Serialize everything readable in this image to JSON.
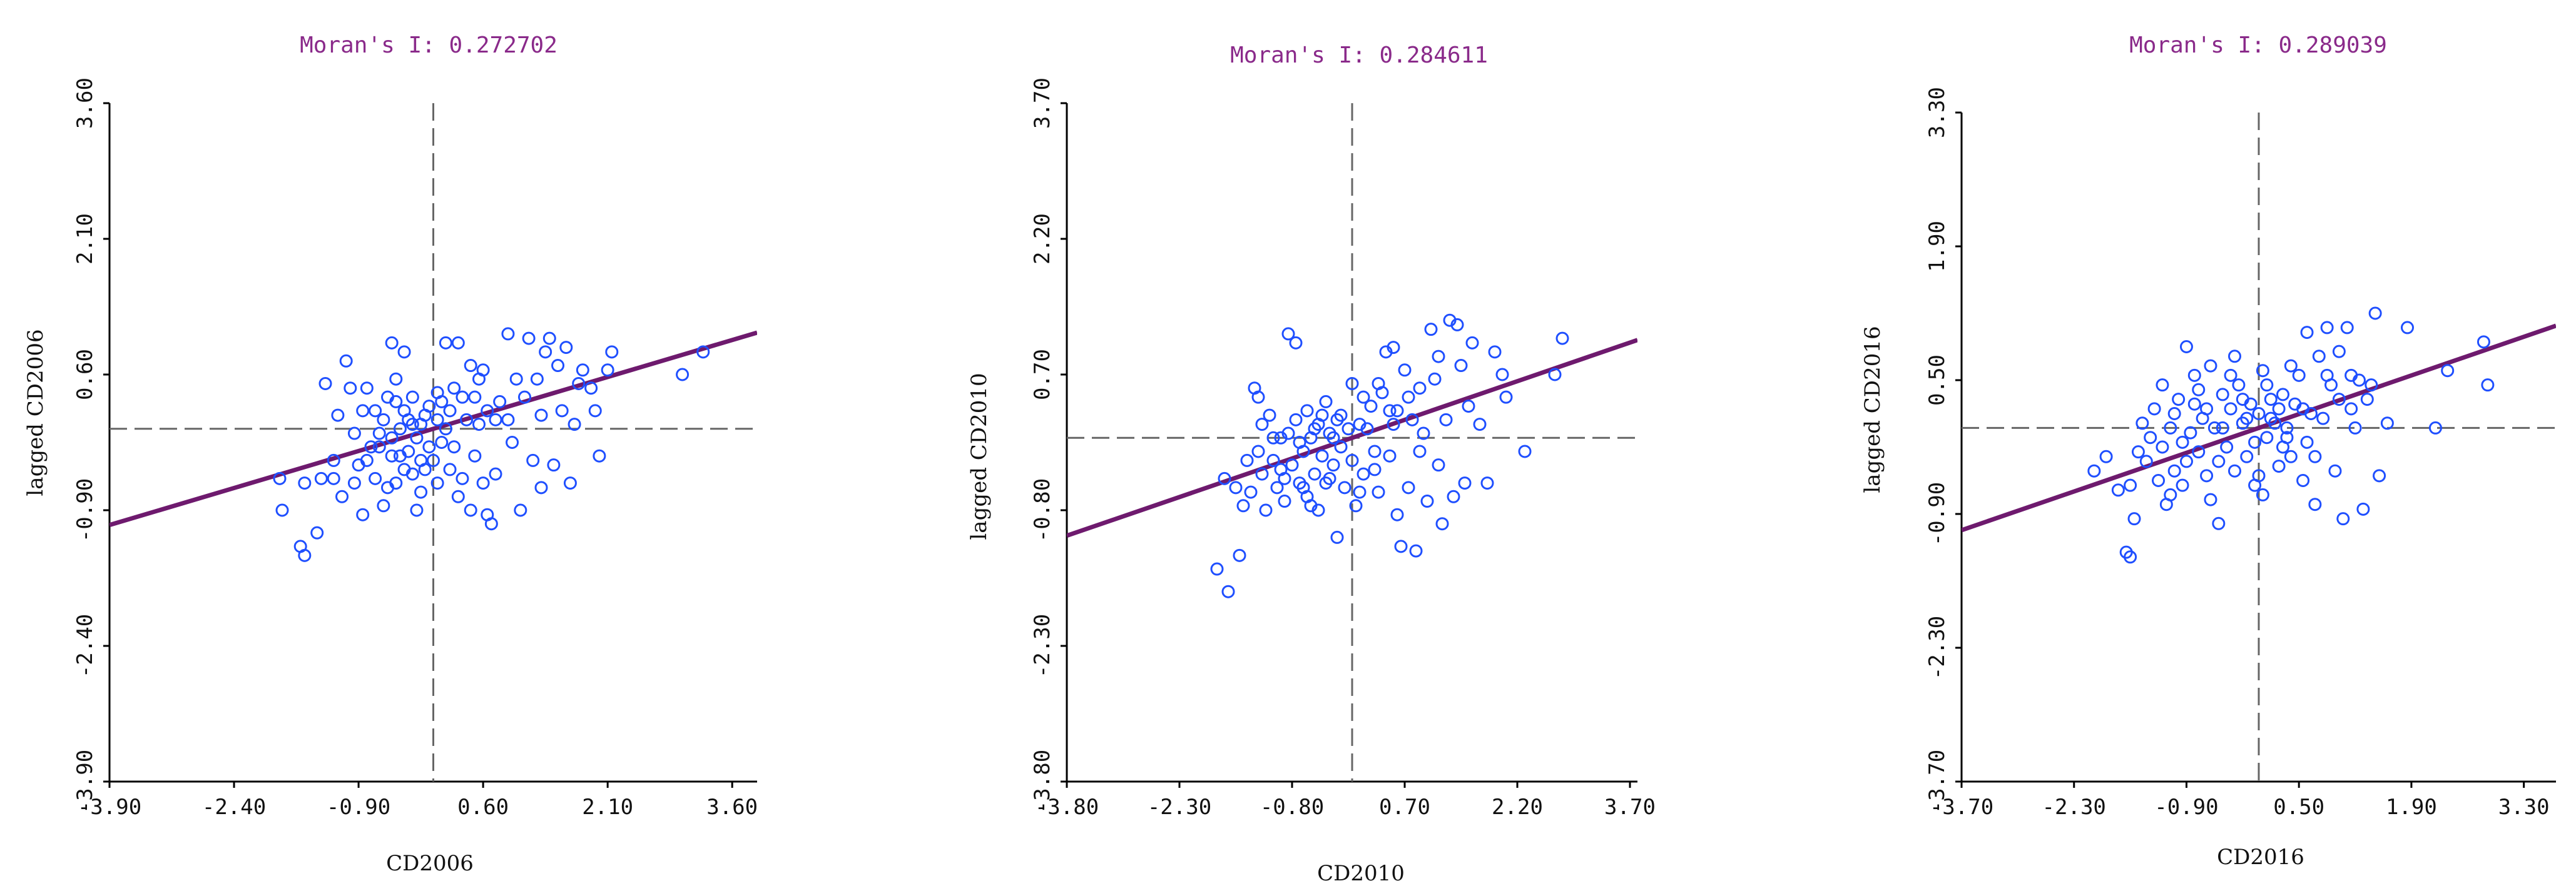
{
  "colors": {
    "points": "#1f4fff",
    "regression": "#6e1a6e",
    "title": "#8a2a8a",
    "quadrant": "#666666"
  },
  "chart_data": [
    {
      "type": "scatter",
      "title": "Moran's I: 0.272702",
      "xlabel": "CD2006",
      "ylabel": "lagged CD2006",
      "xlim": [
        -3.9,
        3.9
      ],
      "ylim": [
        -3.9,
        3.6
      ],
      "xticks": [
        -3.9,
        -2.4,
        -0.9,
        0.6,
        2.1,
        3.6
      ],
      "yticks": [
        -3.9,
        -2.4,
        -0.9,
        0.6,
        2.1,
        3.6
      ],
      "xtick_labels": [
        "-3.90",
        "-2.40",
        "-0.90",
        "0.60",
        "2.10",
        "3.60"
      ],
      "ytick_labels": [
        "-3.90",
        "-2.40",
        "-0.90",
        "0.60",
        "2.10",
        "3.60"
      ],
      "slope": 0.272702,
      "quadrant_x": 0,
      "quadrant_y": 0,
      "points": [
        [
          -1.85,
          -0.55
        ],
        [
          -1.82,
          -0.9
        ],
        [
          -1.6,
          -1.3
        ],
        [
          -1.55,
          -1.4
        ],
        [
          -1.4,
          -1.15
        ],
        [
          -1.55,
          -0.6
        ],
        [
          -1.35,
          -0.55
        ],
        [
          -1.3,
          0.5
        ],
        [
          -1.2,
          -0.55
        ],
        [
          -1.1,
          -0.75
        ],
        [
          -1.05,
          0.75
        ],
        [
          -1.0,
          0.45
        ],
        [
          -0.95,
          -0.6
        ],
        [
          -0.9,
          -0.4
        ],
        [
          -0.85,
          0.2
        ],
        [
          -0.85,
          -0.95
        ],
        [
          -0.8,
          -0.35
        ],
        [
          -0.75,
          -0.2
        ],
        [
          -0.7,
          0.2
        ],
        [
          -0.7,
          -0.55
        ],
        [
          -0.65,
          -0.2
        ],
        [
          -0.6,
          0.1
        ],
        [
          -0.6,
          -0.85
        ],
        [
          -0.55,
          0.35
        ],
        [
          -0.5,
          0.95
        ],
        [
          -0.5,
          -0.1
        ],
        [
          -0.5,
          -0.3
        ],
        [
          -0.45,
          0.3
        ],
        [
          -0.45,
          -0.6
        ],
        [
          -0.4,
          0.0
        ],
        [
          -0.4,
          -0.3
        ],
        [
          -0.35,
          0.2
        ],
        [
          -0.35,
          -0.45
        ],
        [
          -0.3,
          0.1
        ],
        [
          -0.3,
          -0.25
        ],
        [
          -0.25,
          0.35
        ],
        [
          -0.25,
          -0.5
        ],
        [
          -0.2,
          -0.1
        ],
        [
          -0.2,
          -0.9
        ],
        [
          -0.15,
          0.05
        ],
        [
          -0.15,
          -0.35
        ],
        [
          -0.1,
          0.15
        ],
        [
          -0.1,
          -0.45
        ],
        [
          -0.05,
          -0.2
        ],
        [
          -0.05,
          0.25
        ],
        [
          0.0,
          -0.35
        ],
        [
          0.05,
          0.1
        ],
        [
          0.05,
          -0.6
        ],
        [
          0.1,
          0.3
        ],
        [
          0.1,
          -0.15
        ],
        [
          0.15,
          0.0
        ],
        [
          0.2,
          0.2
        ],
        [
          0.2,
          -0.45
        ],
        [
          0.25,
          -0.2
        ],
        [
          0.3,
          0.95
        ],
        [
          0.3,
          -0.75
        ],
        [
          0.35,
          0.35
        ],
        [
          0.4,
          0.1
        ],
        [
          0.45,
          0.7
        ],
        [
          0.5,
          0.35
        ],
        [
          0.5,
          -0.3
        ],
        [
          0.55,
          0.05
        ],
        [
          0.6,
          0.65
        ],
        [
          0.6,
          -0.6
        ],
        [
          0.65,
          0.2
        ],
        [
          0.7,
          -1.05
        ],
        [
          0.75,
          -0.5
        ],
        [
          0.8,
          0.3
        ],
        [
          0.9,
          1.05
        ],
        [
          0.9,
          0.1
        ],
        [
          0.95,
          -0.15
        ],
        [
          1.0,
          0.55
        ],
        [
          1.05,
          -0.9
        ],
        [
          1.1,
          0.35
        ],
        [
          1.15,
          1.0
        ],
        [
          1.2,
          -0.35
        ],
        [
          1.3,
          0.15
        ],
        [
          1.35,
          0.85
        ],
        [
          1.4,
          1.0
        ],
        [
          1.45,
          -0.4
        ],
        [
          1.5,
          0.7
        ],
        [
          1.55,
          0.2
        ],
        [
          1.6,
          0.9
        ],
        [
          1.7,
          0.05
        ],
        [
          1.75,
          0.5
        ],
        [
          1.9,
          0.45
        ],
        [
          1.95,
          0.2
        ],
        [
          2.0,
          -0.3
        ],
        [
          2.1,
          0.65
        ],
        [
          -0.35,
          0.85
        ],
        [
          0.15,
          0.95
        ],
        [
          0.55,
          0.55
        ],
        [
          -0.95,
          -0.05
        ],
        [
          1.25,
          0.55
        ],
        [
          0.35,
          -0.55
        ],
        [
          -0.25,
          0.05
        ],
        [
          3.0,
          0.6
        ],
        [
          3.25,
          0.85
        ],
        [
          2.15,
          0.85
        ],
        [
          1.8,
          0.65
        ],
        [
          0.05,
          0.4
        ],
        [
          -0.65,
          -0.05
        ],
        [
          -0.15,
          -0.7
        ],
        [
          0.75,
          0.1
        ],
        [
          1.3,
          -0.65
        ],
        [
          0.45,
          -0.9
        ],
        [
          -1.2,
          -0.35
        ],
        [
          -0.55,
          -0.65
        ],
        [
          0.25,
          0.45
        ],
        [
          0.65,
          -0.95
        ],
        [
          1.65,
          -0.6
        ],
        [
          -0.8,
          0.45
        ],
        [
          -0.45,
          0.55
        ],
        [
          -1.15,
          0.15
        ]
      ]
    },
    {
      "type": "scatter",
      "title": "Moran's I: 0.284611",
      "xlabel": "CD2010",
      "ylabel": "lagged CD2010",
      "xlim": [
        -3.8,
        3.8
      ],
      "ylim": [
        -3.8,
        3.7
      ],
      "xticks": [
        -3.8,
        -2.3,
        -0.8,
        0.7,
        2.2,
        3.7
      ],
      "yticks": [
        -3.8,
        -2.3,
        -0.8,
        0.7,
        2.2,
        3.7
      ],
      "xtick_labels": [
        "-3.80",
        "-2.30",
        "-0.80",
        "0.70",
        "2.20",
        "3.70"
      ],
      "ytick_labels": [
        "-3.80",
        "-2.30",
        "-0.80",
        "0.70",
        "2.20",
        "3.70"
      ],
      "slope": 0.284611,
      "quadrant_x": 0,
      "quadrant_y": 0,
      "points": [
        [
          -1.8,
          -1.45
        ],
        [
          -1.65,
          -1.7
        ],
        [
          -1.5,
          -1.3
        ],
        [
          -1.55,
          -0.55
        ],
        [
          -1.45,
          -0.75
        ],
        [
          -1.35,
          -0.6
        ],
        [
          -1.3,
          0.55
        ],
        [
          -1.25,
          0.45
        ],
        [
          -1.2,
          -0.4
        ],
        [
          -1.15,
          -0.8
        ],
        [
          -1.1,
          0.25
        ],
        [
          -1.05,
          -0.25
        ],
        [
          -1.0,
          -0.55
        ],
        [
          -0.95,
          0.0
        ],
        [
          -0.9,
          -0.7
        ],
        [
          -0.85,
          1.15
        ],
        [
          -0.8,
          -0.3
        ],
        [
          -0.75,
          1.05
        ],
        [
          -0.75,
          0.2
        ],
        [
          -0.7,
          -0.5
        ],
        [
          -0.65,
          -0.15
        ],
        [
          -0.6,
          0.3
        ],
        [
          -0.6,
          -0.65
        ],
        [
          -0.55,
          0.0
        ],
        [
          -0.5,
          -0.4
        ],
        [
          -0.45,
          0.15
        ],
        [
          -0.45,
          -0.8
        ],
        [
          -0.4,
          -0.2
        ],
        [
          -0.35,
          0.4
        ],
        [
          -0.35,
          -0.5
        ],
        [
          -0.3,
          0.05
        ],
        [
          -0.25,
          -0.3
        ],
        [
          -0.2,
          -1.1
        ],
        [
          -0.2,
          0.2
        ],
        [
          -0.15,
          -0.1
        ],
        [
          -0.1,
          -0.55
        ],
        [
          -0.05,
          0.1
        ],
        [
          0.0,
          -0.25
        ],
        [
          0.0,
          0.6
        ],
        [
          0.05,
          -0.75
        ],
        [
          0.1,
          0.15
        ],
        [
          0.15,
          -0.4
        ],
        [
          0.25,
          0.35
        ],
        [
          0.3,
          -0.15
        ],
        [
          0.35,
          -0.6
        ],
        [
          0.4,
          0.5
        ],
        [
          0.45,
          0.95
        ],
        [
          0.5,
          -0.2
        ],
        [
          0.55,
          1.0
        ],
        [
          0.6,
          0.3
        ],
        [
          0.65,
          -1.2
        ],
        [
          0.7,
          0.75
        ],
        [
          0.75,
          -0.55
        ],
        [
          0.8,
          0.2
        ],
        [
          0.85,
          -1.25
        ],
        [
          0.9,
          0.55
        ],
        [
          0.95,
          0.05
        ],
        [
          1.0,
          -0.7
        ],
        [
          1.05,
          1.2
        ],
        [
          1.1,
          0.65
        ],
        [
          1.15,
          -0.3
        ],
        [
          1.2,
          -0.95
        ],
        [
          1.25,
          0.2
        ],
        [
          1.3,
          1.3
        ],
        [
          1.35,
          -0.65
        ],
        [
          1.4,
          1.25
        ],
        [
          1.45,
          0.8
        ],
        [
          1.5,
          -0.5
        ],
        [
          1.55,
          0.35
        ],
        [
          1.6,
          1.05
        ],
        [
          1.7,
          0.15
        ],
        [
          1.8,
          -0.5
        ],
        [
          1.9,
          0.95
        ],
        [
          2.0,
          0.7
        ],
        [
          2.05,
          0.45
        ],
        [
          2.3,
          -0.15
        ],
        [
          2.7,
          0.7
        ],
        [
          2.8,
          1.1
        ],
        [
          -1.7,
          -0.45
        ],
        [
          -1.4,
          -0.25
        ],
        [
          -1.25,
          -0.15
        ],
        [
          -0.95,
          -0.35
        ],
        [
          -0.85,
          0.05
        ],
        [
          -0.7,
          -0.05
        ],
        [
          -0.55,
          -0.75
        ],
        [
          -0.4,
          0.25
        ],
        [
          -0.3,
          -0.45
        ],
        [
          -0.15,
          0.25
        ],
        [
          0.1,
          -0.6
        ],
        [
          0.2,
          0.1
        ],
        [
          0.35,
          0.6
        ],
        [
          0.5,
          0.3
        ],
        [
          0.6,
          -0.85
        ],
        [
          0.75,
          0.45
        ],
        [
          0.9,
          -0.15
        ],
        [
          -1.05,
          0.0
        ],
        [
          -0.65,
          -0.55
        ],
        [
          -0.25,
          0.0
        ],
        [
          0.15,
          0.45
        ],
        [
          1.15,
          0.9
        ],
        [
          -1.2,
          0.15
        ],
        [
          -0.9,
          -0.45
        ],
        [
          -0.5,
          0.1
        ],
        [
          0.3,
          -0.35
        ],
        [
          0.55,
          0.15
        ]
      ]
    },
    {
      "type": "scatter",
      "title": "Moran's I: 0.289039",
      "xlabel": "CD2016",
      "ylabel": "lagged CD2016",
      "xlim": [
        -3.7,
        3.7
      ],
      "ylim": [
        -3.7,
        3.3
      ],
      "xticks": [
        -3.7,
        -2.3,
        -0.9,
        0.5,
        1.9,
        3.3
      ],
      "yticks": [
        -3.7,
        -2.3,
        -0.9,
        0.5,
        1.9,
        3.3
      ],
      "xtick_labels": [
        "-3.70",
        "-2.30",
        "-0.90",
        "0.50",
        "1.90",
        "3.30"
      ],
      "ytick_labels": [
        "-3.70",
        "-2.30",
        "-0.90",
        "0.50",
        "1.90",
        "3.30"
      ],
      "slope": 0.289039,
      "quadrant_x": 0,
      "quadrant_y": 0,
      "points": [
        [
          -2.05,
          -0.45
        ],
        [
          -1.9,
          -0.3
        ],
        [
          -1.65,
          -1.3
        ],
        [
          -1.6,
          -1.35
        ],
        [
          -1.6,
          -0.6
        ],
        [
          -1.55,
          -0.95
        ],
        [
          -1.5,
          -0.25
        ],
        [
          -1.4,
          -0.35
        ],
        [
          -1.3,
          0.2
        ],
        [
          -1.25,
          -0.55
        ],
        [
          -1.2,
          0.45
        ],
        [
          -1.15,
          -0.8
        ],
        [
          -1.1,
          0.0
        ],
        [
          -1.05,
          -0.45
        ],
        [
          -1.0,
          0.3
        ],
        [
          -0.95,
          -0.6
        ],
        [
          -0.9,
          0.85
        ],
        [
          -0.85,
          -0.05
        ],
        [
          -0.8,
          0.55
        ],
        [
          -0.75,
          -0.25
        ],
        [
          -0.7,
          0.1
        ],
        [
          -0.65,
          -0.5
        ],
        [
          -0.6,
          0.65
        ],
        [
          -0.55,
          0.0
        ],
        [
          -0.5,
          -1.0
        ],
        [
          -0.45,
          0.35
        ],
        [
          -0.4,
          -0.2
        ],
        [
          -0.35,
          0.2
        ],
        [
          -0.3,
          -0.45
        ],
        [
          -0.25,
          0.45
        ],
        [
          -0.2,
          0.05
        ],
        [
          -0.15,
          -0.3
        ],
        [
          -0.1,
          0.25
        ],
        [
          -0.05,
          -0.15
        ],
        [
          0.0,
          0.15
        ],
        [
          0.05,
          0.6
        ],
        [
          0.05,
          -0.7
        ],
        [
          0.1,
          -0.1
        ],
        [
          0.15,
          0.3
        ],
        [
          0.2,
          0.05
        ],
        [
          0.25,
          -0.4
        ],
        [
          0.3,
          0.35
        ],
        [
          0.35,
          0.0
        ],
        [
          0.4,
          -0.3
        ],
        [
          0.45,
          0.25
        ],
        [
          0.5,
          0.55
        ],
        [
          0.55,
          -0.55
        ],
        [
          0.6,
          1.0
        ],
        [
          0.65,
          0.15
        ],
        [
          0.7,
          -0.8
        ],
        [
          0.75,
          0.75
        ],
        [
          0.8,
          0.1
        ],
        [
          0.85,
          1.05
        ],
        [
          0.9,
          0.45
        ],
        [
          0.95,
          -0.45
        ],
        [
          1.0,
          0.3
        ],
        [
          1.05,
          -0.95
        ],
        [
          1.1,
          1.05
        ],
        [
          1.15,
          0.55
        ],
        [
          1.2,
          0.0
        ],
        [
          1.25,
          0.5
        ],
        [
          1.3,
          -0.85
        ],
        [
          1.35,
          0.3
        ],
        [
          1.45,
          1.2
        ],
        [
          1.5,
          -0.5
        ],
        [
          1.6,
          0.05
        ],
        [
          1.85,
          1.05
        ],
        [
          2.2,
          0.0
        ],
        [
          2.35,
          0.6
        ],
        [
          2.8,
          0.9
        ],
        [
          2.85,
          0.45
        ],
        [
          -1.75,
          -0.65
        ],
        [
          -1.35,
          -0.1
        ],
        [
          -1.05,
          0.15
        ],
        [
          -0.9,
          -0.35
        ],
        [
          -0.75,
          0.4
        ],
        [
          -0.6,
          -0.75
        ],
        [
          -0.45,
          0.0
        ],
        [
          -0.3,
          0.75
        ],
        [
          -0.15,
          0.1
        ],
        [
          0.0,
          -0.5
        ],
        [
          0.15,
          0.1
        ],
        [
          0.3,
          -0.2
        ],
        [
          0.4,
          0.65
        ],
        [
          0.55,
          0.2
        ],
        [
          0.7,
          -0.3
        ],
        [
          0.85,
          0.55
        ],
        [
          1.0,
          0.8
        ],
        [
          1.15,
          0.2
        ],
        [
          -1.2,
          -0.2
        ],
        [
          -0.8,
          0.25
        ],
        [
          -0.5,
          -0.35
        ],
        [
          -0.2,
          0.3
        ],
        [
          0.1,
          0.45
        ],
        [
          0.35,
          -0.1
        ],
        [
          -1.45,
          0.05
        ],
        [
          -0.95,
          -0.15
        ],
        [
          -0.35,
          0.55
        ],
        [
          0.25,
          0.2
        ],
        [
          -0.65,
          0.2
        ],
        [
          0.6,
          -0.15
        ],
        [
          -1.1,
          -0.7
        ],
        [
          1.4,
          0.45
        ],
        [
          -0.05,
          -0.6
        ]
      ]
    }
  ]
}
